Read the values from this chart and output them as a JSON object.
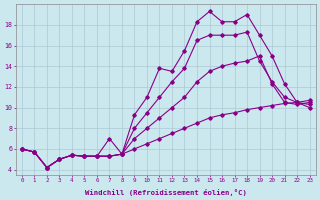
{
  "xlabel": "Windchill (Refroidissement éolien,°C)",
  "background_color": "#cbe8ef",
  "grid_color": "#aac8d4",
  "line_color": "#880088",
  "xlim": [
    -0.5,
    23.5
  ],
  "ylim": [
    3.5,
    20.0
  ],
  "xticks": [
    0,
    1,
    2,
    3,
    4,
    5,
    6,
    7,
    8,
    9,
    10,
    11,
    12,
    13,
    14,
    15,
    16,
    17,
    18,
    19,
    20,
    21,
    22,
    23
  ],
  "yticks": [
    4,
    6,
    8,
    10,
    12,
    14,
    16,
    18
  ],
  "line1_x": [
    0,
    1,
    2,
    3,
    4,
    5,
    6,
    7,
    8,
    9,
    10,
    11,
    12,
    13,
    14,
    15,
    16,
    17,
    18,
    19,
    20,
    21,
    22,
    23
  ],
  "line1_y": [
    6.0,
    5.7,
    4.2,
    5.0,
    5.4,
    5.3,
    5.3,
    5.3,
    5.5,
    9.3,
    11.0,
    13.8,
    13.5,
    15.5,
    18.3,
    19.3,
    18.3,
    18.3,
    19.0,
    17.0,
    15.0,
    12.3,
    10.5,
    10.0
  ],
  "line2_x": [
    0,
    1,
    2,
    3,
    4,
    5,
    6,
    7,
    8,
    9,
    10,
    11,
    12,
    13,
    14,
    15,
    16,
    17,
    18,
    19,
    20,
    21,
    22,
    23
  ],
  "line2_y": [
    6.0,
    5.7,
    4.2,
    5.0,
    5.4,
    5.3,
    5.3,
    5.3,
    5.5,
    8.0,
    9.5,
    11.0,
    12.5,
    13.8,
    16.5,
    17.0,
    17.0,
    17.0,
    17.3,
    14.5,
    12.5,
    11.0,
    10.5,
    10.3
  ],
  "line3_x": [
    0,
    1,
    2,
    3,
    4,
    5,
    6,
    7,
    8,
    9,
    10,
    11,
    12,
    13,
    14,
    15,
    16,
    17,
    18,
    19,
    20,
    21,
    22,
    23
  ],
  "line3_y": [
    6.0,
    5.7,
    4.2,
    5.0,
    5.4,
    5.3,
    5.3,
    7.0,
    5.5,
    7.0,
    8.0,
    9.0,
    10.0,
    11.0,
    12.5,
    13.5,
    14.0,
    14.3,
    14.5,
    15.0,
    12.3,
    10.5,
    10.3,
    10.5
  ],
  "line4_x": [
    0,
    1,
    2,
    3,
    4,
    5,
    6,
    7,
    8,
    9,
    10,
    11,
    12,
    13,
    14,
    15,
    16,
    17,
    18,
    19,
    20,
    21,
    22,
    23
  ],
  "line4_y": [
    6.0,
    5.7,
    4.2,
    5.0,
    5.4,
    5.3,
    5.3,
    5.3,
    5.5,
    6.0,
    6.5,
    7.0,
    7.5,
    8.0,
    8.5,
    9.0,
    9.3,
    9.5,
    9.8,
    10.0,
    10.2,
    10.4,
    10.5,
    10.7
  ]
}
